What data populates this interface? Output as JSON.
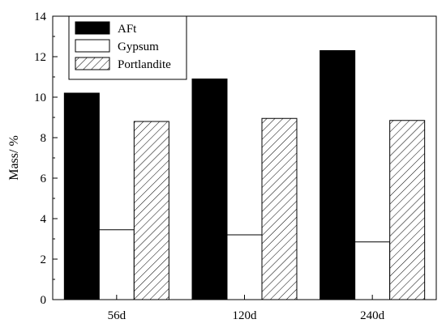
{
  "chart_data": {
    "type": "bar",
    "title": "",
    "xlabel": "",
    "ylabel": "Mass/ %",
    "ylim": [
      0,
      14
    ],
    "yticks": [
      "0",
      "2",
      "4",
      "6",
      "8",
      "10",
      "12",
      "14"
    ],
    "categories": [
      "56d",
      "120d",
      "240d"
    ],
    "series": [
      {
        "name": "AFt",
        "values": [
          10.2,
          10.9,
          12.3
        ],
        "fill": "#000000",
        "pattern": "solid"
      },
      {
        "name": "Gypsum",
        "values": [
          3.45,
          3.2,
          2.85
        ],
        "fill": "#ffffff",
        "pattern": "none"
      },
      {
        "name": "Portlandite",
        "values": [
          8.8,
          8.95,
          8.85
        ],
        "fill": "#ffffff",
        "pattern": "hatch"
      }
    ],
    "legend_position": "top-left",
    "grid": false
  }
}
